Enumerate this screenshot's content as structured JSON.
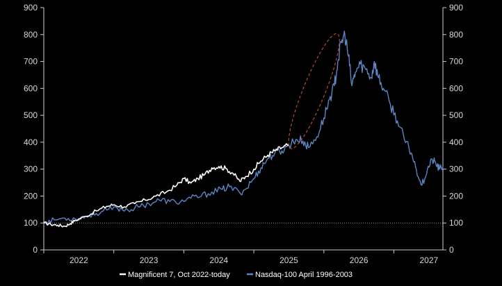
{
  "chart_data": {
    "type": "line",
    "title": "",
    "xlabel": "",
    "ylabel": "",
    "ylim": [
      0,
      900
    ],
    "xlim": [
      2022.0,
      2027.7
    ],
    "x_ticks": [
      "2022",
      "2023",
      "2024",
      "2025",
      "2026",
      "2027"
    ],
    "y_ticks": [
      "0",
      "100",
      "200",
      "300",
      "400",
      "500",
      "600",
      "700",
      "800",
      "900"
    ],
    "reference_line": 100,
    "series": [
      {
        "name": "Magnificent 7, Oct 2022-today",
        "color": "#ffffff",
        "points": [
          [
            2022.0,
            100
          ],
          [
            2022.1,
            95
          ],
          [
            2022.2,
            92
          ],
          [
            2022.3,
            88
          ],
          [
            2022.38,
            98
          ],
          [
            2022.45,
            110
          ],
          [
            2022.6,
            125
          ],
          [
            2022.75,
            145
          ],
          [
            2022.9,
            162
          ],
          [
            2023.0,
            168
          ],
          [
            2023.15,
            160
          ],
          [
            2023.3,
            172
          ],
          [
            2023.45,
            185
          ],
          [
            2023.6,
            200
          ],
          [
            2023.75,
            215
          ],
          [
            2023.9,
            240
          ],
          [
            2024.0,
            265
          ],
          [
            2024.1,
            248
          ],
          [
            2024.2,
            265
          ],
          [
            2024.3,
            280
          ],
          [
            2024.4,
            305
          ],
          [
            2024.5,
            310
          ],
          [
            2024.6,
            302
          ],
          [
            2024.7,
            285
          ],
          [
            2024.8,
            255
          ],
          [
            2024.88,
            272
          ],
          [
            2025.0,
            300
          ],
          [
            2025.1,
            330
          ],
          [
            2025.2,
            352
          ],
          [
            2025.3,
            368
          ],
          [
            2025.4,
            380
          ],
          [
            2025.5,
            390
          ]
        ]
      },
      {
        "name": "Nasdaq-100 April 1996-2003",
        "color": "#5d86c4",
        "points": [
          [
            2022.0,
            100
          ],
          [
            2022.15,
            112
          ],
          [
            2022.3,
            118
          ],
          [
            2022.45,
            115
          ],
          [
            2022.6,
            125
          ],
          [
            2022.75,
            135
          ],
          [
            2022.9,
            148
          ],
          [
            2023.05,
            155
          ],
          [
            2023.2,
            148
          ],
          [
            2023.35,
            160
          ],
          [
            2023.5,
            172
          ],
          [
            2023.65,
            185
          ],
          [
            2023.8,
            180
          ],
          [
            2023.95,
            178
          ],
          [
            2024.1,
            192
          ],
          [
            2024.25,
            200
          ],
          [
            2024.4,
            215
          ],
          [
            2024.55,
            225
          ],
          [
            2024.65,
            235
          ],
          [
            2024.8,
            212
          ],
          [
            2024.88,
            225
          ],
          [
            2025.0,
            265
          ],
          [
            2025.1,
            305
          ],
          [
            2025.2,
            340
          ],
          [
            2025.3,
            360
          ],
          [
            2025.4,
            368
          ],
          [
            2025.5,
            390
          ],
          [
            2025.6,
            410
          ],
          [
            2025.7,
            405
          ],
          [
            2025.78,
            380
          ],
          [
            2025.9,
            420
          ],
          [
            2026.0,
            490
          ],
          [
            2026.08,
            560
          ],
          [
            2026.15,
            610
          ],
          [
            2026.2,
            700
          ],
          [
            2026.25,
            770
          ],
          [
            2026.3,
            800
          ],
          [
            2026.35,
            720
          ],
          [
            2026.4,
            610
          ],
          [
            2026.45,
            660
          ],
          [
            2026.52,
            690
          ],
          [
            2026.6,
            670
          ],
          [
            2026.68,
            640
          ],
          [
            2026.72,
            700
          ],
          [
            2026.78,
            640
          ],
          [
            2026.85,
            600
          ],
          [
            2026.95,
            540
          ],
          [
            2027.05,
            480
          ],
          [
            2027.15,
            410
          ],
          [
            2027.25,
            360
          ],
          [
            2027.32,
            300
          ],
          [
            2027.4,
            240
          ],
          [
            2027.48,
            300
          ],
          [
            2027.55,
            335
          ],
          [
            2027.6,
            320
          ],
          [
            2027.65,
            300
          ],
          [
            2027.7,
            310
          ]
        ]
      }
    ],
    "annotations": [
      {
        "type": "dashed-ellipse",
        "color": "#b64a33",
        "x_center": 2025.86,
        "y_center": 590,
        "x_half": 0.35,
        "y_half": 230
      }
    ],
    "legend": {
      "position": "bottom-center"
    }
  }
}
